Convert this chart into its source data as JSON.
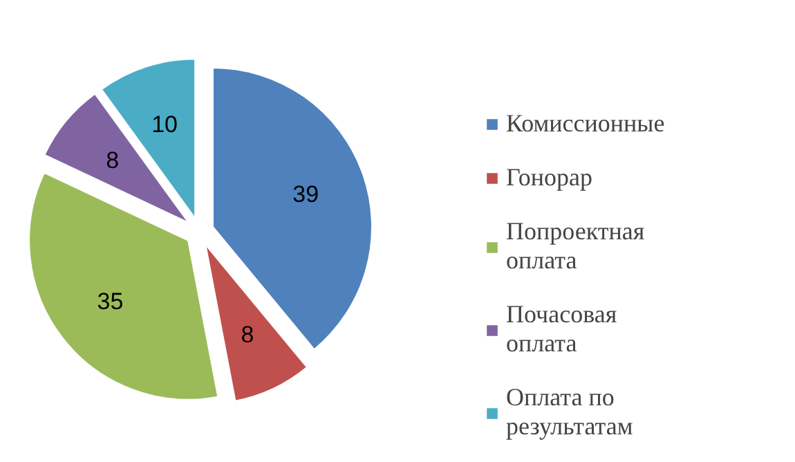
{
  "chart_data": {
    "type": "pie",
    "categories": [
      "Комиссионные",
      "Гонорар",
      "Попроектная оплата",
      "Почасовая оплата",
      "Оплата по результатам"
    ],
    "values": [
      39,
      8,
      35,
      8,
      10
    ],
    "colors": [
      "#4f81bd",
      "#c0504d",
      "#9bbb59",
      "#8064a2",
      "#4bacc6"
    ],
    "data_labels": true,
    "legend": "right"
  }
}
